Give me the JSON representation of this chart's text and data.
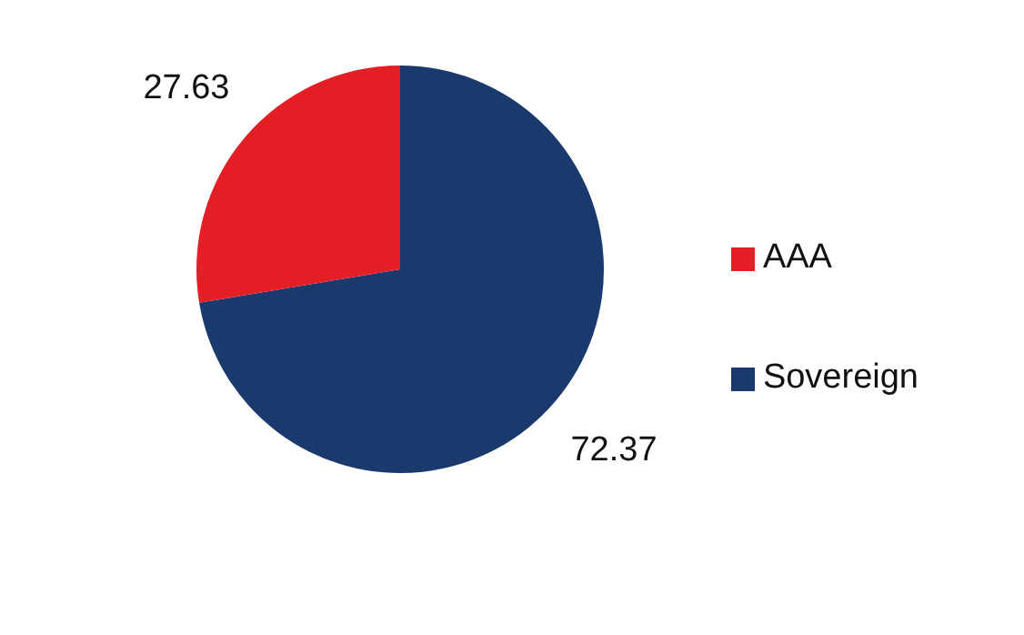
{
  "chart_data": {
    "type": "pie",
    "categories": [
      "Sovereign",
      "AAA"
    ],
    "values": [
      72.37,
      27.63
    ],
    "colors": [
      "#1a3a6e",
      "#e31e24"
    ],
    "data_labels": true,
    "legend": "right"
  }
}
